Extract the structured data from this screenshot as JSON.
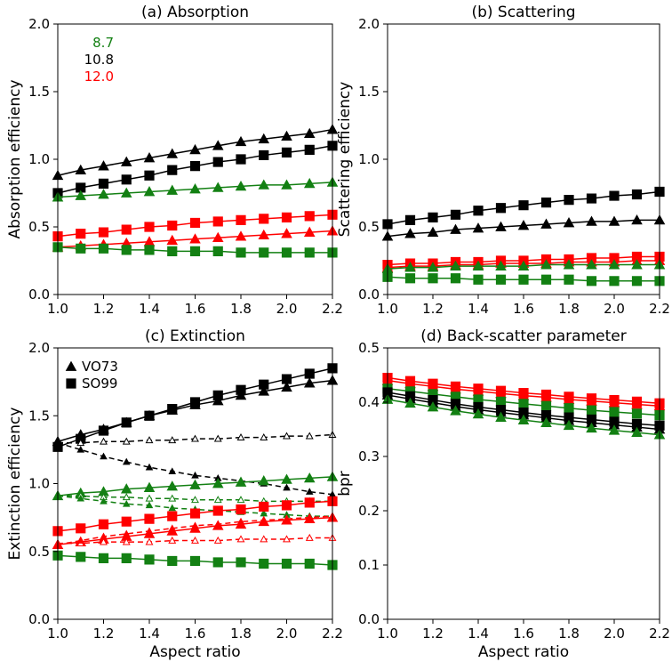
{
  "colors": {
    "black": "#000000",
    "green": "#138013",
    "red": "#ff0000"
  },
  "legend_wavelengths": [
    {
      "label": "8.7",
      "color": "green"
    },
    {
      "label": "10.8",
      "color": "black"
    },
    {
      "label": "12.0",
      "color": "red"
    }
  ],
  "legend_shapes": [
    {
      "label": "VO73",
      "marker": "triangle"
    },
    {
      "label": "SO99",
      "marker": "square"
    }
  ],
  "chart_data": [
    {
      "type": "line",
      "title": "(a) Absorption",
      "xlabel": "",
      "ylabel": "Absorption efficiency",
      "xlim": [
        1.0,
        2.2
      ],
      "ylim": [
        0.0,
        2.0
      ],
      "x_ticks": [
        "1.0",
        "1.2",
        "1.4",
        "1.6",
        "1.8",
        "2.0",
        "2.2"
      ],
      "y_ticks": [
        "0.0",
        "0.5",
        "1.0",
        "1.5",
        "2.0"
      ],
      "x": [
        1.0,
        1.1,
        1.2,
        1.3,
        1.4,
        1.5,
        1.6,
        1.7,
        1.8,
        1.9,
        2.0,
        2.1,
        2.2
      ],
      "series": [
        {
          "color": "black",
          "marker": "triangle",
          "dash": false,
          "values": [
            0.88,
            0.92,
            0.95,
            0.98,
            1.01,
            1.04,
            1.07,
            1.1,
            1.13,
            1.15,
            1.17,
            1.19,
            1.22
          ]
        },
        {
          "color": "black",
          "marker": "square",
          "dash": false,
          "values": [
            0.75,
            0.79,
            0.82,
            0.85,
            0.88,
            0.92,
            0.95,
            0.98,
            1.0,
            1.03,
            1.05,
            1.07,
            1.1
          ]
        },
        {
          "color": "green",
          "marker": "triangle",
          "dash": false,
          "values": [
            0.72,
            0.73,
            0.74,
            0.75,
            0.76,
            0.77,
            0.78,
            0.79,
            0.8,
            0.81,
            0.81,
            0.82,
            0.83
          ]
        },
        {
          "color": "red",
          "marker": "square",
          "dash": false,
          "values": [
            0.43,
            0.45,
            0.46,
            0.48,
            0.5,
            0.51,
            0.53,
            0.54,
            0.55,
            0.56,
            0.57,
            0.58,
            0.59
          ]
        },
        {
          "color": "red",
          "marker": "triangle",
          "dash": false,
          "values": [
            0.35,
            0.36,
            0.37,
            0.38,
            0.39,
            0.4,
            0.41,
            0.42,
            0.43,
            0.44,
            0.45,
            0.46,
            0.47
          ]
        },
        {
          "color": "green",
          "marker": "square",
          "dash": false,
          "values": [
            0.35,
            0.34,
            0.34,
            0.33,
            0.33,
            0.32,
            0.32,
            0.32,
            0.31,
            0.31,
            0.31,
            0.31,
            0.31
          ]
        }
      ]
    },
    {
      "type": "line",
      "title": "(b) Scattering",
      "xlabel": "",
      "ylabel": "Scattering efficiency",
      "xlim": [
        1.0,
        2.2
      ],
      "ylim": [
        0.0,
        2.0
      ],
      "x_ticks": [
        "1.0",
        "1.2",
        "1.4",
        "1.6",
        "1.8",
        "2.0",
        "2.2"
      ],
      "y_ticks": [
        "0.0",
        "0.5",
        "1.0",
        "1.5",
        "2.0"
      ],
      "x": [
        1.0,
        1.1,
        1.2,
        1.3,
        1.4,
        1.5,
        1.6,
        1.7,
        1.8,
        1.9,
        2.0,
        2.1,
        2.2
      ],
      "series": [
        {
          "color": "black",
          "marker": "square",
          "dash": false,
          "values": [
            0.52,
            0.55,
            0.57,
            0.59,
            0.62,
            0.64,
            0.66,
            0.68,
            0.7,
            0.71,
            0.73,
            0.74,
            0.76
          ]
        },
        {
          "color": "black",
          "marker": "triangle",
          "dash": false,
          "values": [
            0.43,
            0.45,
            0.46,
            0.48,
            0.49,
            0.5,
            0.51,
            0.52,
            0.53,
            0.54,
            0.54,
            0.55,
            0.55
          ]
        },
        {
          "color": "red",
          "marker": "square",
          "dash": false,
          "values": [
            0.22,
            0.23,
            0.23,
            0.24,
            0.24,
            0.25,
            0.25,
            0.26,
            0.26,
            0.27,
            0.27,
            0.28,
            0.28
          ]
        },
        {
          "color": "red",
          "marker": "triangle",
          "dash": false,
          "values": [
            0.2,
            0.21,
            0.21,
            0.22,
            0.22,
            0.23,
            0.23,
            0.23,
            0.24,
            0.24,
            0.24,
            0.25,
            0.25
          ]
        },
        {
          "color": "green",
          "marker": "triangle",
          "dash": false,
          "values": [
            0.19,
            0.2,
            0.2,
            0.21,
            0.21,
            0.21,
            0.21,
            0.22,
            0.22,
            0.22,
            0.22,
            0.22,
            0.22
          ]
        },
        {
          "color": "green",
          "marker": "square",
          "dash": false,
          "values": [
            0.13,
            0.12,
            0.12,
            0.12,
            0.11,
            0.11,
            0.11,
            0.11,
            0.11,
            0.1,
            0.1,
            0.1,
            0.1
          ]
        }
      ]
    },
    {
      "type": "line",
      "title": "(c) Extinction",
      "xlabel": "Aspect ratio",
      "ylabel": "Extinction efficiency",
      "xlim": [
        1.0,
        2.2
      ],
      "ylim": [
        0.0,
        2.0
      ],
      "x_ticks": [
        "1.0",
        "1.2",
        "1.4",
        "1.6",
        "1.8",
        "2.0",
        "2.2"
      ],
      "y_ticks": [
        "0.0",
        "0.5",
        "1.0",
        "1.5",
        "2.0"
      ],
      "x": [
        1.0,
        1.1,
        1.2,
        1.3,
        1.4,
        1.5,
        1.6,
        1.7,
        1.8,
        1.9,
        2.0,
        2.1,
        2.2
      ],
      "series": [
        {
          "color": "black",
          "marker": "square",
          "dash": false,
          "values": [
            1.27,
            1.33,
            1.39,
            1.45,
            1.5,
            1.55,
            1.6,
            1.65,
            1.69,
            1.73,
            1.77,
            1.81,
            1.85
          ]
        },
        {
          "color": "black",
          "marker": "triangle",
          "dash": false,
          "values": [
            1.31,
            1.36,
            1.4,
            1.45,
            1.5,
            1.54,
            1.58,
            1.61,
            1.65,
            1.68,
            1.71,
            1.74,
            1.76
          ]
        },
        {
          "color": "black",
          "marker": "open-triangle",
          "dash": true,
          "values": [
            1.3,
            1.3,
            1.31,
            1.31,
            1.32,
            1.32,
            1.33,
            1.33,
            1.34,
            1.34,
            1.35,
            1.35,
            1.36
          ]
        },
        {
          "color": "black",
          "marker": "triangle",
          "dash": true,
          "values": [
            1.3,
            1.25,
            1.2,
            1.16,
            1.12,
            1.09,
            1.06,
            1.04,
            1.02,
            1.0,
            0.97,
            0.94,
            0.92
          ]
        },
        {
          "color": "green",
          "marker": "triangle",
          "dash": false,
          "values": [
            0.91,
            0.93,
            0.94,
            0.96,
            0.97,
            0.98,
            0.99,
            1.0,
            1.01,
            1.02,
            1.03,
            1.04,
            1.05
          ]
        },
        {
          "color": "green",
          "marker": "open-triangle",
          "dash": true,
          "values": [
            0.91,
            0.91,
            0.9,
            0.9,
            0.89,
            0.89,
            0.88,
            0.88,
            0.88,
            0.87,
            0.87,
            0.87,
            0.87
          ]
        },
        {
          "color": "green",
          "marker": "triangle",
          "dash": true,
          "values": [
            0.91,
            0.89,
            0.87,
            0.85,
            0.84,
            0.82,
            0.81,
            0.8,
            0.79,
            0.78,
            0.77,
            0.76,
            0.76
          ]
        },
        {
          "color": "red",
          "marker": "square",
          "dash": false,
          "values": [
            0.65,
            0.67,
            0.7,
            0.72,
            0.74,
            0.76,
            0.78,
            0.8,
            0.81,
            0.83,
            0.84,
            0.86,
            0.87
          ]
        },
        {
          "color": "red",
          "marker": "triangle",
          "dash": false,
          "values": [
            0.55,
            0.57,
            0.59,
            0.61,
            0.63,
            0.65,
            0.67,
            0.69,
            0.7,
            0.72,
            0.73,
            0.74,
            0.75
          ]
        },
        {
          "color": "red",
          "marker": "open-triangle",
          "dash": true,
          "values": [
            0.56,
            0.56,
            0.57,
            0.57,
            0.57,
            0.58,
            0.58,
            0.58,
            0.59,
            0.59,
            0.59,
            0.6,
            0.6
          ]
        },
        {
          "color": "red",
          "marker": "triangle",
          "dash": true,
          "values": [
            0.55,
            0.58,
            0.61,
            0.63,
            0.65,
            0.67,
            0.69,
            0.7,
            0.72,
            0.73,
            0.74,
            0.75,
            0.76
          ]
        },
        {
          "color": "green",
          "marker": "square",
          "dash": false,
          "values": [
            0.47,
            0.46,
            0.45,
            0.45,
            0.44,
            0.43,
            0.43,
            0.42,
            0.42,
            0.41,
            0.41,
            0.41,
            0.4
          ]
        }
      ]
    },
    {
      "type": "line",
      "title": "(d) Back-scatter parameter",
      "xlabel": "Aspect ratio",
      "ylabel": "bpr",
      "xlim": [
        1.0,
        2.2
      ],
      "ylim": [
        0.0,
        0.5
      ],
      "x_ticks": [
        "1.0",
        "1.2",
        "1.4",
        "1.6",
        "1.8",
        "2.0",
        "2.2"
      ],
      "y_ticks": [
        "0.0",
        "0.1",
        "0.2",
        "0.3",
        "0.4",
        "0.5"
      ],
      "x": [
        1.0,
        1.1,
        1.2,
        1.3,
        1.4,
        1.5,
        1.6,
        1.7,
        1.8,
        1.9,
        2.0,
        2.1,
        2.2
      ],
      "series": [
        {
          "color": "red",
          "marker": "square",
          "dash": false,
          "values": [
            0.445,
            0.439,
            0.434,
            0.429,
            0.425,
            0.421,
            0.417,
            0.414,
            0.41,
            0.407,
            0.404,
            0.401,
            0.398
          ]
        },
        {
          "color": "red",
          "marker": "triangle",
          "dash": false,
          "values": [
            0.44,
            0.434,
            0.429,
            0.424,
            0.42,
            0.416,
            0.412,
            0.409,
            0.405,
            0.402,
            0.399,
            0.396,
            0.393
          ]
        },
        {
          "color": "green",
          "marker": "square",
          "dash": false,
          "values": [
            0.425,
            0.42,
            0.415,
            0.41,
            0.405,
            0.401,
            0.397,
            0.393,
            0.389,
            0.385,
            0.382,
            0.379,
            0.376
          ]
        },
        {
          "color": "black",
          "marker": "square",
          "dash": false,
          "values": [
            0.418,
            0.411,
            0.404,
            0.397,
            0.391,
            0.386,
            0.381,
            0.376,
            0.372,
            0.368,
            0.364,
            0.36,
            0.357
          ]
        },
        {
          "color": "black",
          "marker": "triangle",
          "dash": false,
          "values": [
            0.413,
            0.406,
            0.399,
            0.392,
            0.386,
            0.381,
            0.376,
            0.371,
            0.366,
            0.362,
            0.358,
            0.354,
            0.35
          ]
        },
        {
          "color": "green",
          "marker": "triangle",
          "dash": false,
          "values": [
            0.405,
            0.398,
            0.391,
            0.384,
            0.378,
            0.372,
            0.367,
            0.362,
            0.357,
            0.352,
            0.348,
            0.344,
            0.34
          ]
        }
      ]
    }
  ]
}
